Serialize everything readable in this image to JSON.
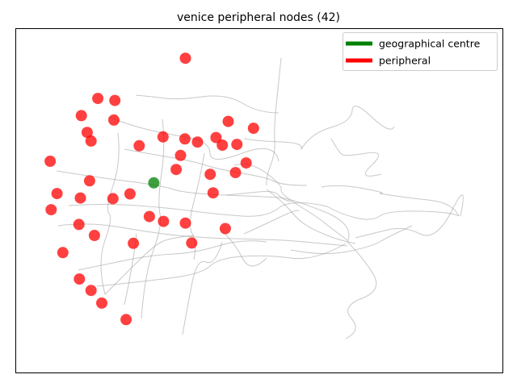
{
  "chart_data": {
    "type": "scatter",
    "title": "venice peripheral nodes (42)",
    "xlabel": "",
    "ylabel": "",
    "axes_visible": false,
    "legend_placement": "upper right",
    "legend": [
      {
        "label": "geographical centre",
        "color": "#008000"
      },
      {
        "label": "peripheral",
        "color": "#ff0000"
      }
    ],
    "series": [
      {
        "name": "geographical centre",
        "color": "#008000",
        "points": [
          [
            28.3,
            55.2
          ]
        ]
      },
      {
        "name": "peripheral",
        "color": "#ff0000",
        "points": [
          [
            34.8,
            91.5
          ],
          [
            43.6,
            73.1
          ],
          [
            48.8,
            71.1
          ],
          [
            16.8,
            79.8
          ],
          [
            20.3,
            79.2
          ],
          [
            13.4,
            74.8
          ],
          [
            20.1,
            73.5
          ],
          [
            14.6,
            69.9
          ],
          [
            15.4,
            67.4
          ],
          [
            25.3,
            66.0
          ],
          [
            30.2,
            68.6
          ],
          [
            34.7,
            68.0
          ],
          [
            37.3,
            67.1
          ],
          [
            41.1,
            68.4
          ],
          [
            42.4,
            66.2
          ],
          [
            45.4,
            66.4
          ],
          [
            33.8,
            63.2
          ],
          [
            32.9,
            59.1
          ],
          [
            47.3,
            61.0
          ],
          [
            45.1,
            58.2
          ],
          [
            39.9,
            57.7
          ],
          [
            7.0,
            61.5
          ],
          [
            15.1,
            55.8
          ],
          [
            8.4,
            52.1
          ],
          [
            13.2,
            50.8
          ],
          [
            19.9,
            50.6
          ],
          [
            23.4,
            52.0
          ],
          [
            40.5,
            52.3
          ],
          [
            7.2,
            47.4
          ],
          [
            27.4,
            45.4
          ],
          [
            30.3,
            44.0
          ],
          [
            34.8,
            43.5
          ],
          [
            12.9,
            43.1
          ],
          [
            16.1,
            39.9
          ],
          [
            24.1,
            37.6
          ],
          [
            36.1,
            37.7
          ],
          [
            43.0,
            41.9
          ],
          [
            9.6,
            34.9
          ],
          [
            13.0,
            27.2
          ],
          [
            15.4,
            23.9
          ],
          [
            17.6,
            20.2
          ],
          [
            22.6,
            15.4
          ]
        ]
      }
    ]
  }
}
